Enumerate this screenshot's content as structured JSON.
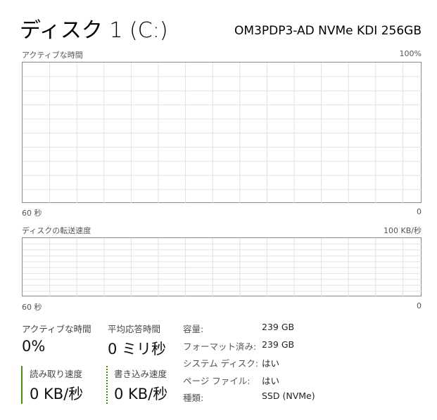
{
  "header": {
    "title": "ディスク 1 (C:)",
    "model": "OM3PDP3-AD NVMe KDI 256GB"
  },
  "chart_data": [
    {
      "type": "line",
      "title": "アクティブな時間",
      "ymax_label": "100%",
      "ymin_label": "0",
      "xstart_label": "60 秒",
      "ylim": [
        0,
        100
      ],
      "unit": "%",
      "series": [],
      "grid": true
    },
    {
      "type": "line",
      "title": "ディスクの転送速度",
      "ymax_label": "100 KB/秒",
      "ymin_label": "0",
      "xstart_label": "60 秒",
      "ylim": [
        0,
        100
      ],
      "unit": "KB/秒",
      "series": [],
      "grid": true
    }
  ],
  "stats": {
    "active_time": {
      "label": "アクティブな時間",
      "value": "0%"
    },
    "response_time": {
      "label": "平均応答時間",
      "value": "0 ミリ秒"
    },
    "read_speed": {
      "label": "読み取り速度",
      "value": "0 KB/秒"
    },
    "write_speed": {
      "label": "書き込み速度",
      "value": "0 KB/秒"
    }
  },
  "properties": [
    {
      "label": "容量:",
      "value": "239 GB"
    },
    {
      "label": "フォーマット済み:",
      "value": "239 GB"
    },
    {
      "label": "システム ディスク:",
      "value": "はい"
    },
    {
      "label": "ページ ファイル:",
      "value": "はい"
    },
    {
      "label": "種類:",
      "value": "SSD (NVMe)"
    }
  ],
  "colors": {
    "read_line": "#4f8a10",
    "write_line": "#4f8a10",
    "grid": "#e2e2e2",
    "border": "#8a8a8a"
  }
}
